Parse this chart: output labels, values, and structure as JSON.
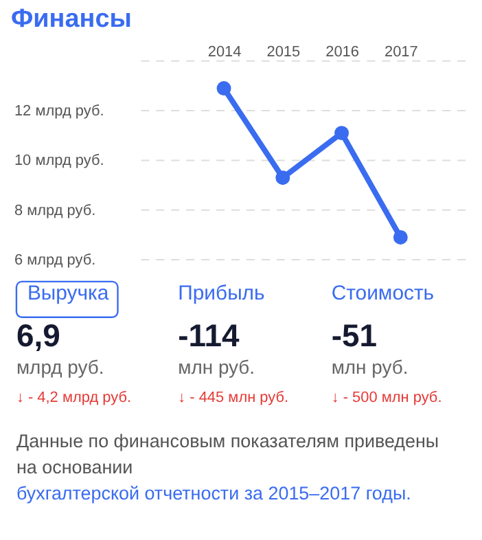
{
  "chart_data": [
    {
      "type": "line",
      "title": "Финансы",
      "categories": [
        "2014",
        "2015",
        "2016",
        "2017"
      ],
      "series": [
        {
          "color": "#3a6cf0",
          "values": [
            12.9,
            9.3,
            11.1,
            6.9
          ]
        }
      ],
      "ylim": [
        6,
        14
      ],
      "yticks": [
        {
          "value": 6,
          "label": "6 млрд руб."
        },
        {
          "value": 8,
          "label": "8 млрд руб."
        },
        {
          "value": 10,
          "label": "10 млрд руб."
        },
        {
          "value": 12,
          "label": "12 млрд руб."
        },
        {
          "value": 14,
          "label": null
        }
      ],
      "grid": "y",
      "marker": "circle",
      "line_style": "solid"
    },
    {
      "type": "other",
      "annotations": [
        "Выручка",
        "Прибыль",
        "Стоимость",
        "6,9",
        "млрд руб.",
        "↓ - 4,2 млрд руб.",
        "-114",
        "млн руб.",
        "↓ - 445 млн руб.",
        "-51",
        "млн руб.",
        "↓ - 500 млн руб.",
        "Данные по финансовым показателям приведены на основании",
        "бухгалтерской отчетности за 2015–2017 годы."
      ]
    }
  ]
}
